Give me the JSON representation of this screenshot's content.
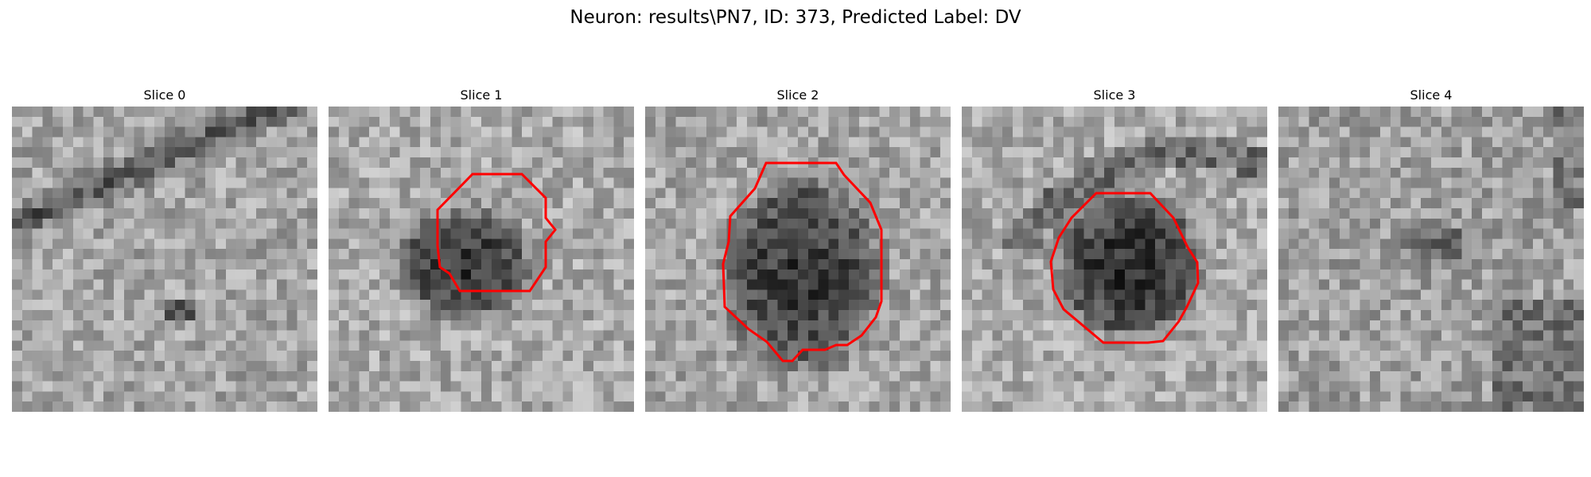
{
  "figure": {
    "suptitle": "Neuron: results\\PN7, ID: 373, Predicted Label: DV"
  },
  "colors": {
    "background": "#ffffff",
    "contour": "#ff0000"
  },
  "slices": [
    {
      "title": "Slice 0",
      "has_contour": false
    },
    {
      "title": "Slice 1",
      "has_contour": true
    },
    {
      "title": "Slice 2",
      "has_contour": true
    },
    {
      "title": "Slice 3",
      "has_contour": true
    },
    {
      "title": "Slice 4",
      "has_contour": false
    }
  ]
}
